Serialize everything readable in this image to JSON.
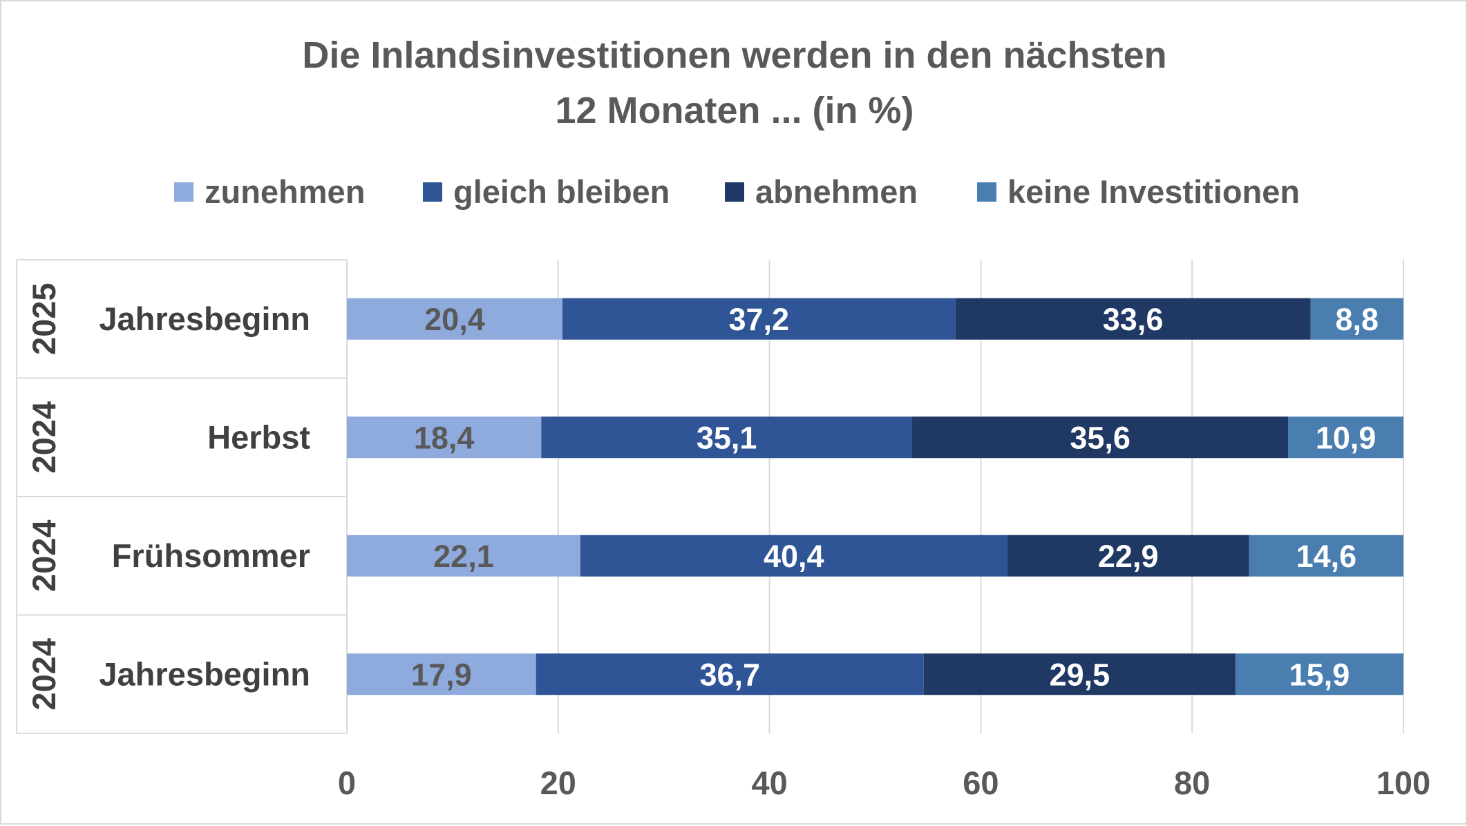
{
  "chart_data": {
    "type": "bar",
    "orientation": "horizontal",
    "stacked": true,
    "title_lines": [
      "Die Inlandsinvestitionen werden in den nächsten",
      "12 Monaten ... (in %)"
    ],
    "legend_position": "top",
    "xlim": [
      0,
      100
    ],
    "x_ticks": [
      0,
      20,
      40,
      60,
      80,
      100
    ],
    "x_tick_labels": [
      "0",
      "20",
      "40",
      "60",
      "80",
      "100"
    ],
    "grid": "vertical",
    "categories": [
      {
        "year": "2025",
        "label": "Jahresbeginn"
      },
      {
        "year": "2024",
        "label": "Herbst"
      },
      {
        "year": "2024",
        "label": "Frühsommer"
      },
      {
        "year": "2024",
        "label": "Jahresbeginn"
      }
    ],
    "series": [
      {
        "name": "zunehmen",
        "color": "#8faadc",
        "label_color": "#595959",
        "values": [
          20.4,
          18.4,
          22.1,
          17.9
        ],
        "labels": [
          "20,4",
          "18,4",
          "22,1",
          "17,9"
        ]
      },
      {
        "name": "gleich bleiben",
        "color": "#2f5597",
        "label_color": "#ffffff",
        "values": [
          37.2,
          35.1,
          40.4,
          36.7
        ],
        "labels": [
          "37,2",
          "35,1",
          "40,4",
          "36,7"
        ]
      },
      {
        "name": "abnehmen",
        "color": "#203864",
        "label_color": "#ffffff",
        "values": [
          33.6,
          35.6,
          22.9,
          29.5
        ],
        "labels": [
          "33,6",
          "35,6",
          "22,9",
          "29,5"
        ]
      },
      {
        "name": "keine Investitionen",
        "color": "#4a7eb0",
        "label_color": "#ffffff",
        "values": [
          8.8,
          10.9,
          14.6,
          15.9
        ],
        "labels": [
          "8,8",
          "10,9",
          "14,6",
          "15,9"
        ]
      }
    ],
    "colors": {
      "grid": "#d9d9d9",
      "axis_text": "#595959",
      "category_text": "#404040"
    }
  }
}
